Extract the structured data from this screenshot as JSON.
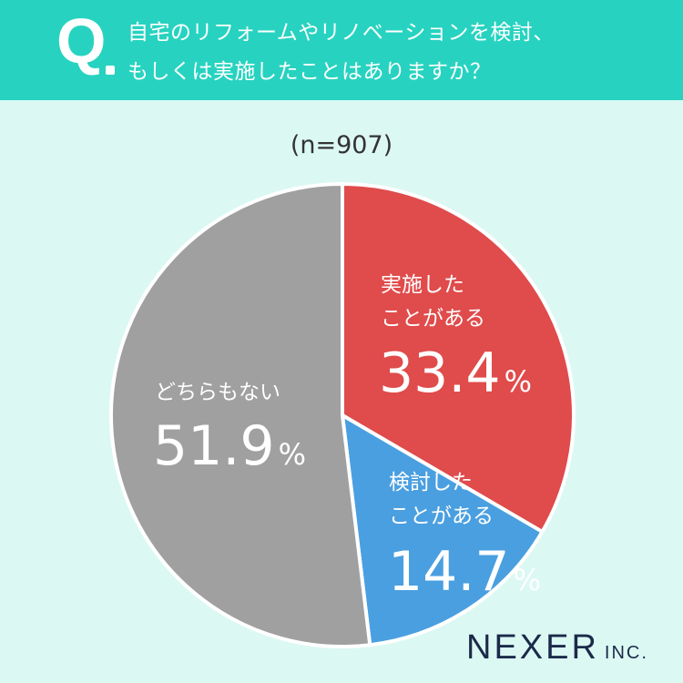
{
  "header": {
    "q_mark": "Q",
    "question_line1": "自宅のリフォームやリノベーションを検討、",
    "question_line2": "もしくは実施したことはありますか？"
  },
  "sample_size": "(n=907)",
  "brand": {
    "name": "NEXER",
    "suffix": "INC."
  },
  "colors": {
    "header": "#27d3c0",
    "background": "#dcf8f3",
    "implemented": "#e04b4b",
    "considered": "#4a9fe0",
    "neither": "#a0a0a0"
  },
  "chart_data": {
    "type": "pie",
    "slices": [
      {
        "label_line1": "実施した",
        "label_line2": "ことがある",
        "value": 33.4,
        "value_text": "33.4",
        "unit": "%",
        "color": "#e04b4b"
      },
      {
        "label_line1": "検討した",
        "label_line2": "ことがある",
        "value": 14.7,
        "value_text": "14.7",
        "unit": "%",
        "color": "#4a9fe0"
      },
      {
        "label_line1": "どちらもない",
        "label_line2": "",
        "value": 51.9,
        "value_text": "51.9",
        "unit": "%",
        "color": "#a0a0a0"
      }
    ],
    "start_angle": "12 o'clock",
    "direction": "clockwise"
  }
}
